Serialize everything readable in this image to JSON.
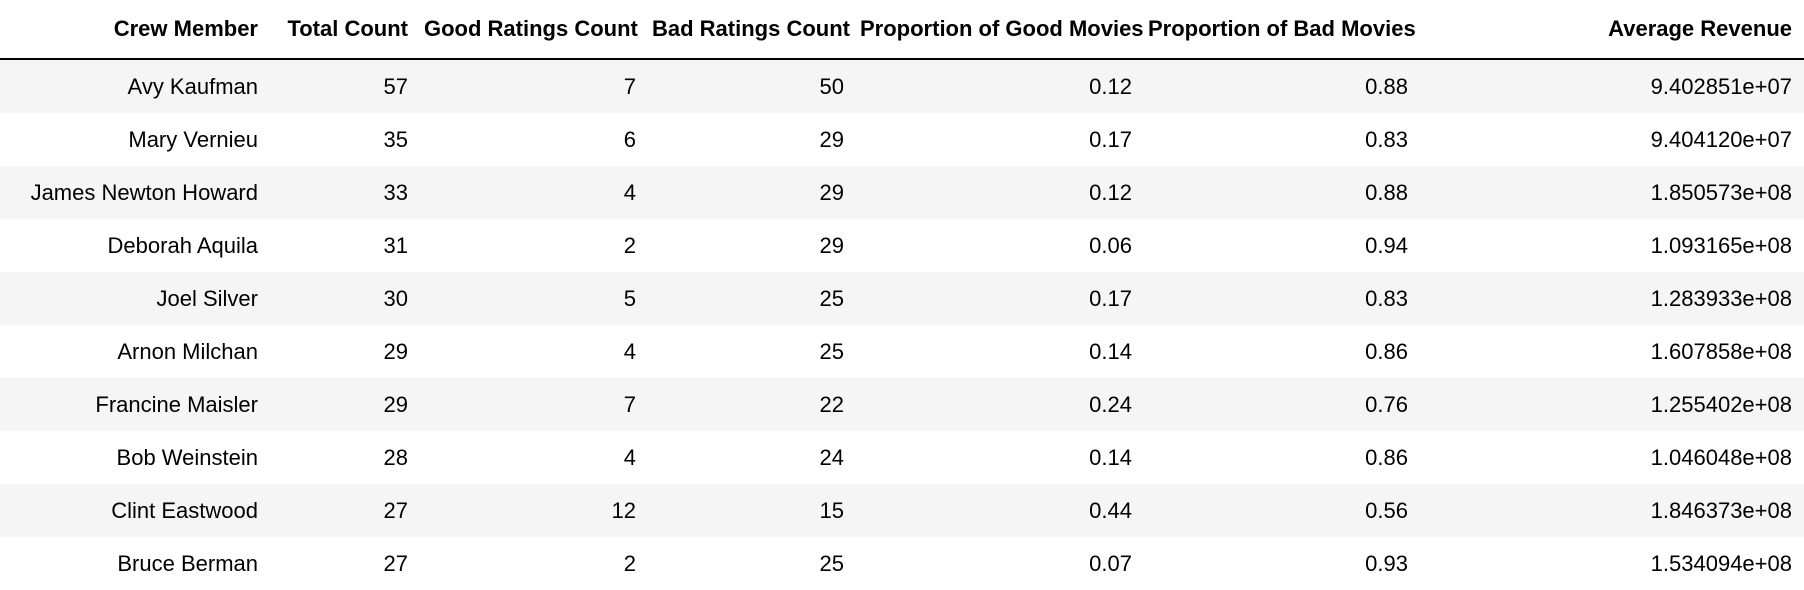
{
  "table": {
    "columns": [
      "Crew Member",
      "Total Count",
      "Good Ratings Count",
      "Bad Ratings Count",
      "Proportion of Good Movies",
      "Proportion of Bad Movies",
      "Average Revenue"
    ],
    "rows": [
      [
        "Avy Kaufman",
        "57",
        "7",
        "50",
        "0.12",
        "0.88",
        "9.402851e+07"
      ],
      [
        "Mary Vernieu",
        "35",
        "6",
        "29",
        "0.17",
        "0.83",
        "9.404120e+07"
      ],
      [
        "James Newton Howard",
        "33",
        "4",
        "29",
        "0.12",
        "0.88",
        "1.850573e+08"
      ],
      [
        "Deborah Aquila",
        "31",
        "2",
        "29",
        "0.06",
        "0.94",
        "1.093165e+08"
      ],
      [
        "Joel Silver",
        "30",
        "5",
        "25",
        "0.17",
        "0.83",
        "1.283933e+08"
      ],
      [
        "Arnon Milchan",
        "29",
        "4",
        "25",
        "0.14",
        "0.86",
        "1.607858e+08"
      ],
      [
        "Francine Maisler",
        "29",
        "7",
        "22",
        "0.24",
        "0.76",
        "1.255402e+08"
      ],
      [
        "Bob Weinstein",
        "28",
        "4",
        "24",
        "0.14",
        "0.86",
        "1.046048e+08"
      ],
      [
        "Clint Eastwood",
        "27",
        "12",
        "15",
        "0.44",
        "0.56",
        "1.846373e+08"
      ],
      [
        "Bruce Berman",
        "27",
        "2",
        "25",
        "0.07",
        "0.93",
        "1.534094e+08"
      ]
    ]
  }
}
